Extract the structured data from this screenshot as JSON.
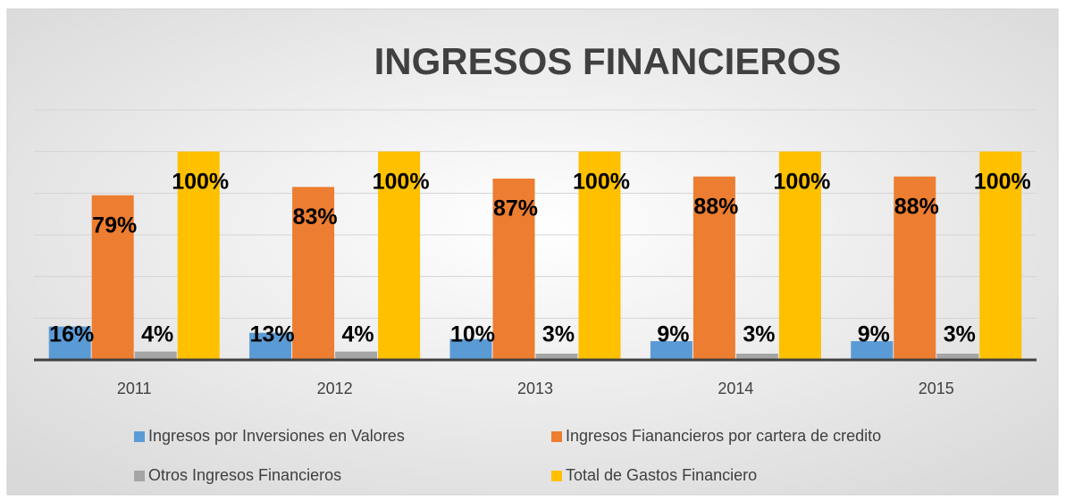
{
  "chart_data": {
    "type": "bar",
    "title": "INGRESOS FINANCIEROS",
    "categories": [
      "2011",
      "2012",
      "2013",
      "2014",
      "2015"
    ],
    "series": [
      {
        "name": "Ingresos por Inversiones en Valores",
        "color": "#5b9bd5",
        "values": [
          16,
          13,
          10,
          9,
          9
        ],
        "value_labels": [
          "16%",
          "13%",
          "10%",
          "9%",
          "9%"
        ]
      },
      {
        "name": "Ingresos Fianancieros  por cartera de credito",
        "color": "#ed7d31",
        "values": [
          79,
          83,
          87,
          88,
          88
        ],
        "value_labels": [
          "79%",
          "83%",
          "87%",
          "88%",
          "88%"
        ]
      },
      {
        "name": "Otros Ingresos Financieros",
        "color": "#a5a5a5",
        "values": [
          4,
          4,
          3,
          3,
          3
        ],
        "value_labels": [
          "4%",
          "4%",
          "3%",
          "3%",
          "3%"
        ]
      },
      {
        "name": "Total de Gastos Financiero",
        "color": "#ffc000",
        "values": [
          100,
          100,
          100,
          100,
          100
        ],
        "value_labels": [
          "100%",
          "100%",
          "100%",
          "100%",
          "100%"
        ]
      }
    ],
    "ylim": [
      0,
      120
    ],
    "yticks": [
      0,
      20,
      40,
      60,
      80,
      100,
      120
    ],
    "grid": true,
    "legend": "bottom"
  }
}
